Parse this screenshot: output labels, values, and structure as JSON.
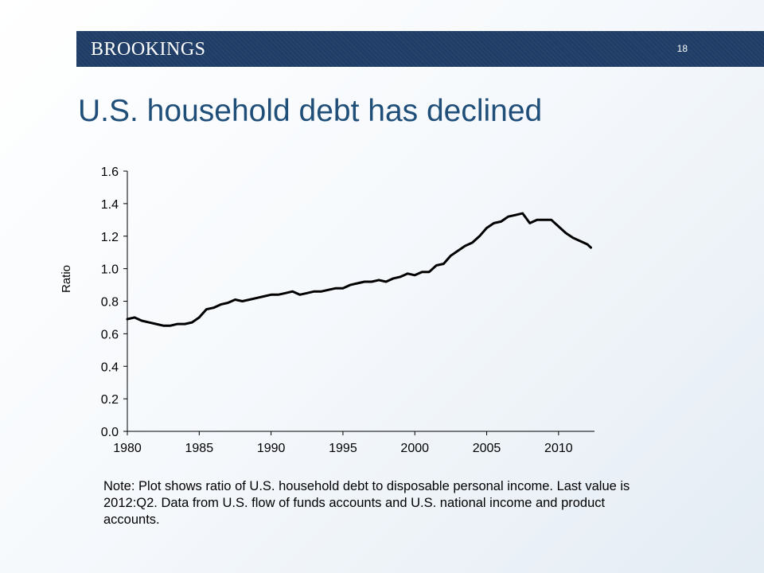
{
  "header": {
    "brand": "BROOKINGS",
    "slide_number": "18"
  },
  "title": "U.S. household debt has declined",
  "note": "Note: Plot shows ratio of U.S. household debt to disposable personal income. Last value is 2012:Q2. Data from U.S. flow of funds accounts and U.S. national income and product accounts.",
  "colors": {
    "banner": "#1f3d66",
    "title": "#1f4e79",
    "line": "#000000"
  },
  "chart_data": {
    "type": "line",
    "title": "",
    "xlabel": "",
    "ylabel": "Ratio",
    "xlim": [
      1980,
      2012.5
    ],
    "ylim": [
      0,
      1.6
    ],
    "x_ticks": [
      1980,
      1985,
      1990,
      1995,
      2000,
      2005,
      2010
    ],
    "y_ticks": [
      "0.0",
      "0.2",
      "0.4",
      "0.6",
      "0.8",
      "1.0",
      "1.2",
      "1.4",
      "1.6"
    ],
    "grid": false,
    "legend": "none",
    "series": [
      {
        "x": [
          1980.0,
          1980.5,
          1981.0,
          1981.5,
          1982.0,
          1982.5,
          1983.0,
          1983.5,
          1984.0,
          1984.5,
          1985.0,
          1985.5,
          1986.0,
          1986.5,
          1987.0,
          1987.5,
          1988.0,
          1988.5,
          1989.0,
          1989.5,
          1990.0,
          1990.5,
          1991.0,
          1991.5,
          1992.0,
          1992.5,
          1993.0,
          1993.5,
          1994.0,
          1994.5,
          1995.0,
          1995.5,
          1996.0,
          1996.5,
          1997.0,
          1997.5,
          1998.0,
          1998.5,
          1999.0,
          1999.5,
          2000.0,
          2000.5,
          2001.0,
          2001.5,
          2002.0,
          2002.5,
          2003.0,
          2003.5,
          2004.0,
          2004.5,
          2005.0,
          2005.5,
          2006.0,
          2006.5,
          2007.0,
          2007.5,
          2008.0,
          2008.5,
          2009.0,
          2009.5,
          2010.0,
          2010.5,
          2011.0,
          2011.5,
          2012.0,
          2012.25
        ],
        "y": [
          0.69,
          0.7,
          0.68,
          0.67,
          0.66,
          0.65,
          0.65,
          0.66,
          0.66,
          0.67,
          0.7,
          0.75,
          0.76,
          0.78,
          0.79,
          0.81,
          0.8,
          0.81,
          0.82,
          0.83,
          0.84,
          0.84,
          0.85,
          0.86,
          0.84,
          0.85,
          0.86,
          0.86,
          0.87,
          0.88,
          0.88,
          0.9,
          0.91,
          0.92,
          0.92,
          0.93,
          0.92,
          0.94,
          0.95,
          0.97,
          0.96,
          0.98,
          0.98,
          1.02,
          1.03,
          1.08,
          1.11,
          1.14,
          1.16,
          1.2,
          1.25,
          1.28,
          1.29,
          1.32,
          1.33,
          1.34,
          1.28,
          1.3,
          1.3,
          1.3,
          1.26,
          1.22,
          1.19,
          1.17,
          1.15,
          1.13
        ]
      }
    ]
  }
}
